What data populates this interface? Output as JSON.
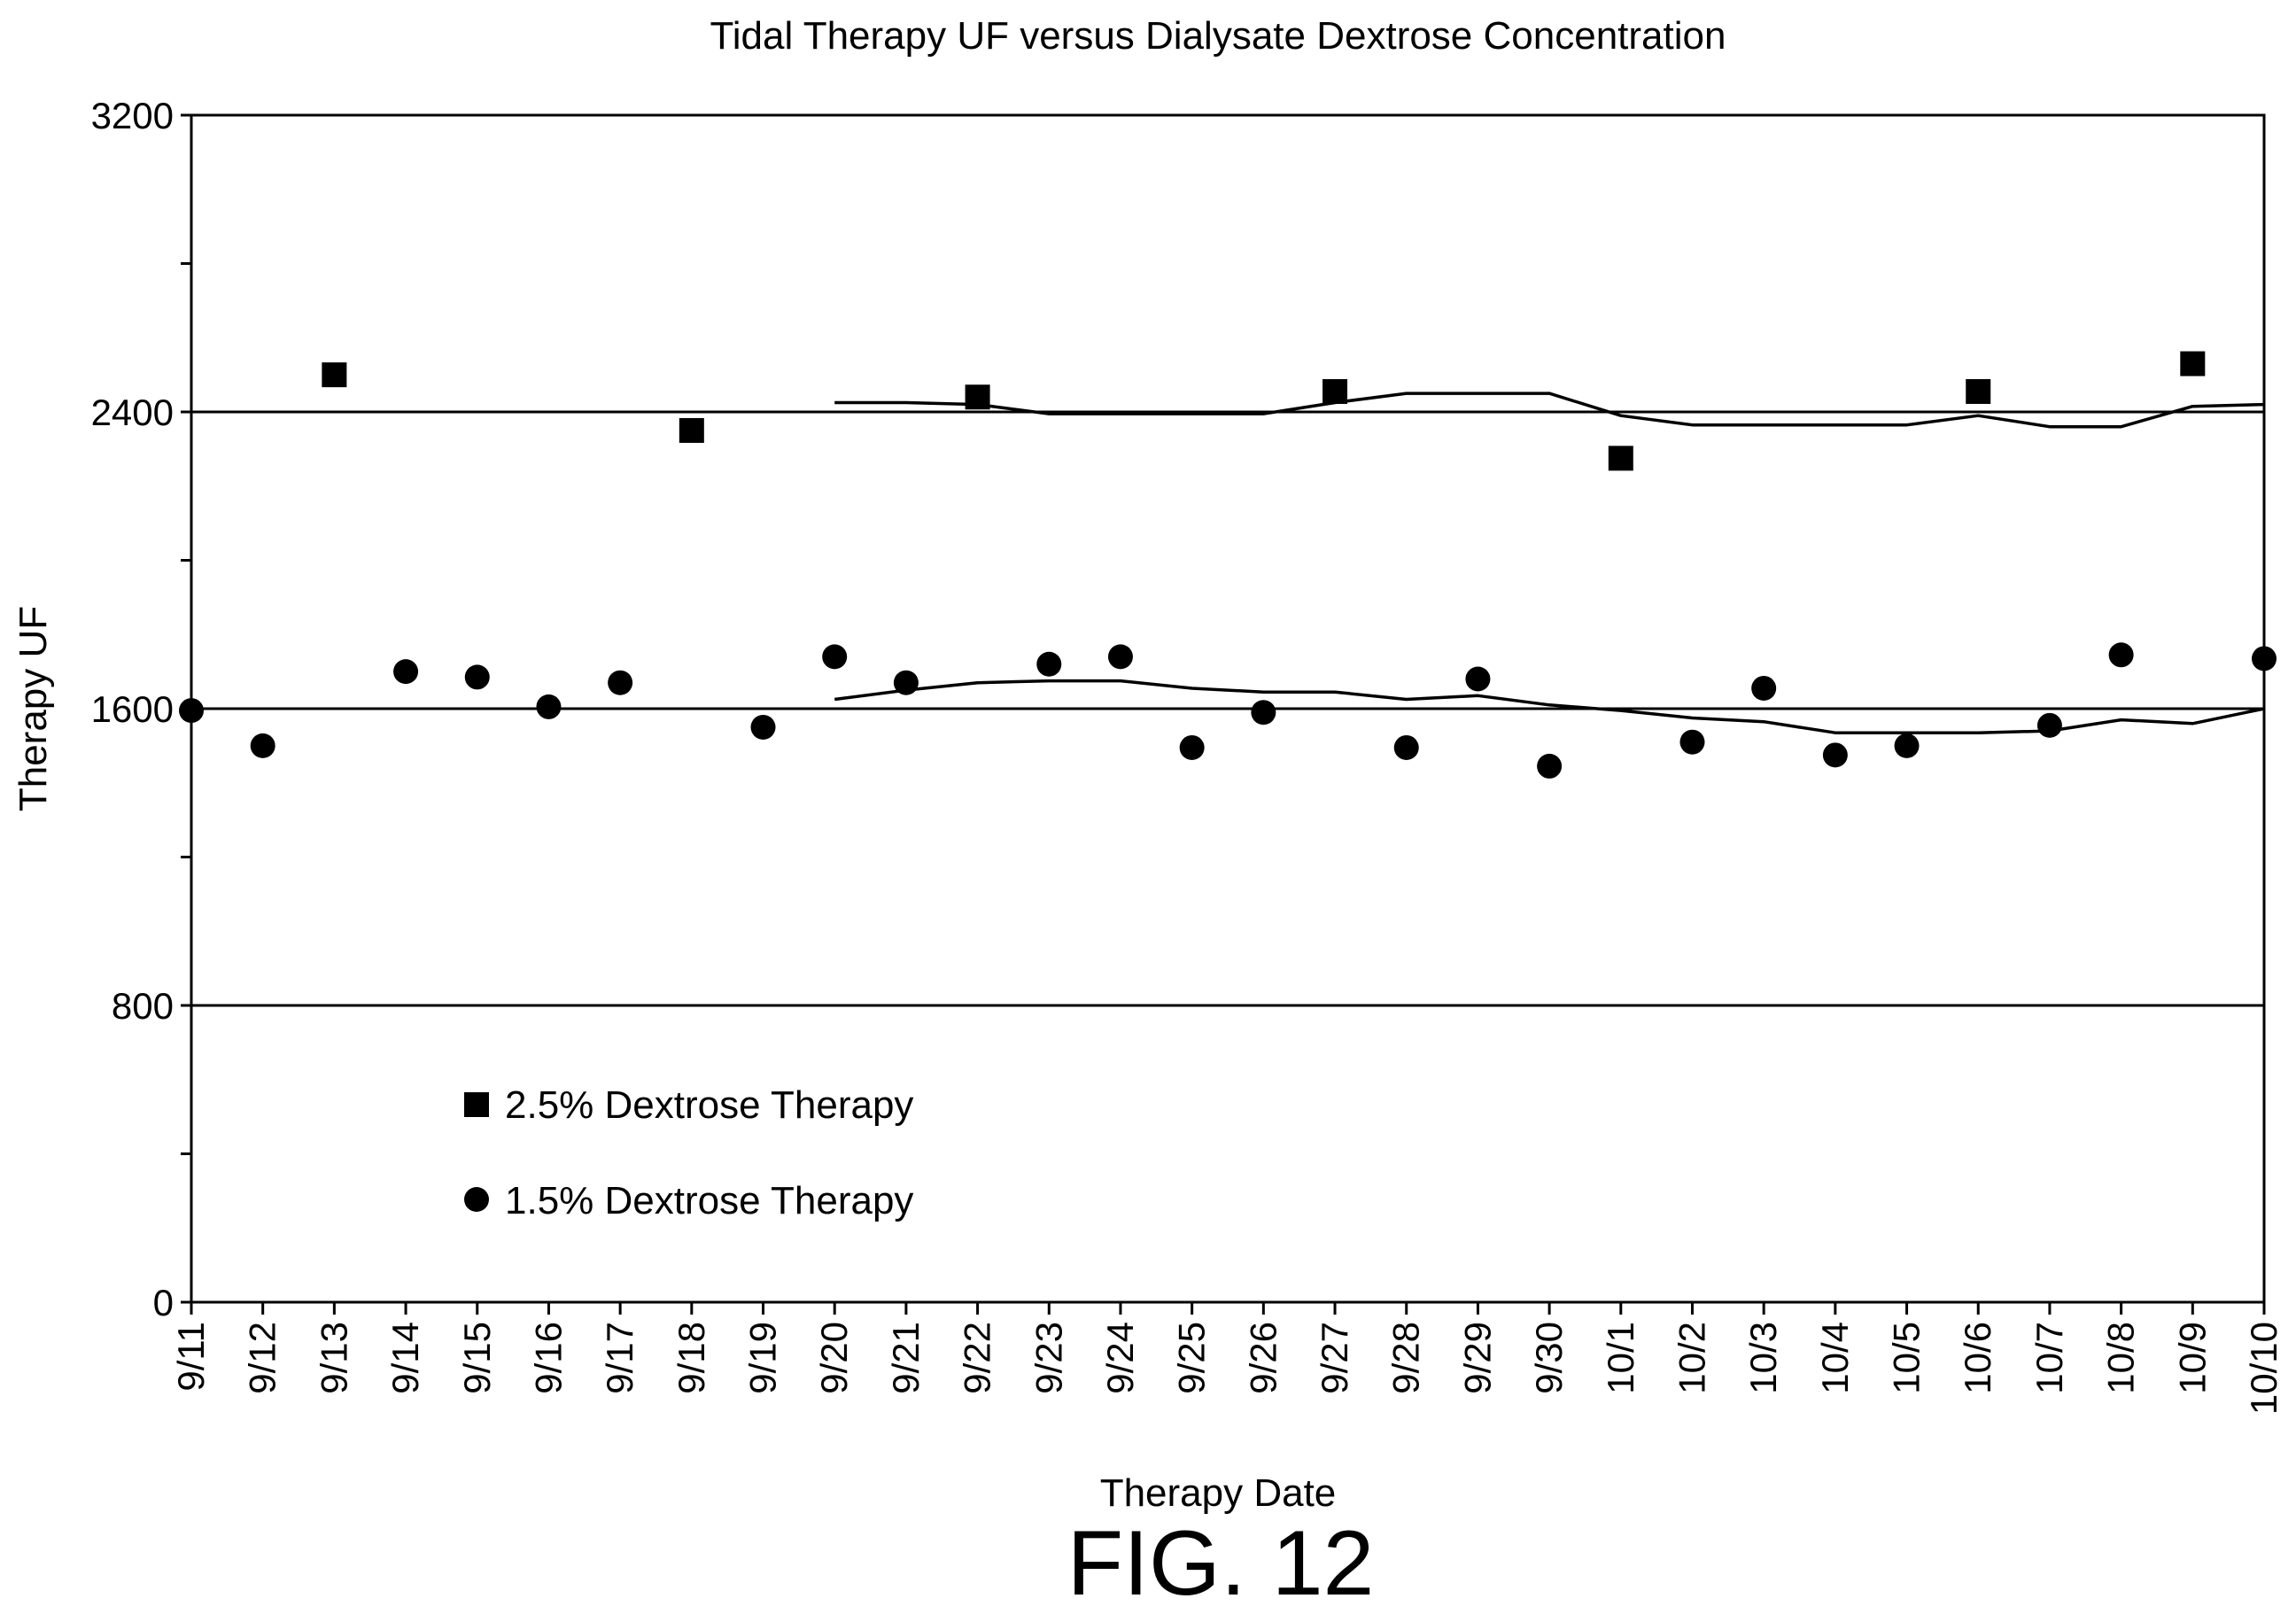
{
  "chart_data": {
    "type": "scatter",
    "title": "Tidal Therapy UF versus Dialysate Dextrose Concentration",
    "xlabel": "Therapy Date",
    "ylabel": "Therapy UF",
    "ylim": [
      0,
      3200
    ],
    "yticks": [
      0,
      800,
      1600,
      2400,
      3200
    ],
    "grid": false,
    "reference_lines": [
      800,
      1600,
      2400
    ],
    "legend_position": "lower-left",
    "categories": [
      "9/11",
      "9/12",
      "9/13",
      "9/14",
      "9/15",
      "9/16",
      "9/17",
      "9/18",
      "9/19",
      "9/20",
      "9/21",
      "9/22",
      "9/23",
      "9/24",
      "9/25",
      "9/26",
      "9/27",
      "9/28",
      "9/29",
      "9/30",
      "10/1",
      "10/2",
      "10/3",
      "10/4",
      "10/5",
      "10/6",
      "10/7",
      "10/8",
      "10/9",
      "10/10"
    ],
    "series": [
      {
        "name": "2.5% Dextrose Therapy",
        "marker": "square",
        "points": [
          {
            "x": "9/13",
            "y": 2500
          },
          {
            "x": "9/18",
            "y": 2350
          },
          {
            "x": "9/22",
            "y": 2440
          },
          {
            "x": "9/27",
            "y": 2455
          },
          {
            "x": "10/1",
            "y": 2275
          },
          {
            "x": "10/6",
            "y": 2455
          },
          {
            "x": "10/9",
            "y": 2530
          }
        ]
      },
      {
        "name": "1.5% Dextrose Therapy",
        "marker": "circle",
        "points": [
          {
            "x": "9/11",
            "y": 1595
          },
          {
            "x": "9/12",
            "y": 1500
          },
          {
            "x": "9/14",
            "y": 1700
          },
          {
            "x": "9/15",
            "y": 1685
          },
          {
            "x": "9/16",
            "y": 1605
          },
          {
            "x": "9/17",
            "y": 1670
          },
          {
            "x": "9/19",
            "y": 1550
          },
          {
            "x": "9/20",
            "y": 1740
          },
          {
            "x": "9/21",
            "y": 1670
          },
          {
            "x": "9/23",
            "y": 1720
          },
          {
            "x": "9/24",
            "y": 1740
          },
          {
            "x": "9/25",
            "y": 1495
          },
          {
            "x": "9/26",
            "y": 1590
          },
          {
            "x": "9/28",
            "y": 1495
          },
          {
            "x": "9/29",
            "y": 1680
          },
          {
            "x": "9/30",
            "y": 1445
          },
          {
            "x": "10/2",
            "y": 1510
          },
          {
            "x": "10/3",
            "y": 1655
          },
          {
            "x": "10/4",
            "y": 1475
          },
          {
            "x": "10/5",
            "y": 1500
          },
          {
            "x": "10/7",
            "y": 1555
          },
          {
            "x": "10/8",
            "y": 1745
          },
          {
            "x": "10/10",
            "y": 1735
          }
        ]
      }
    ],
    "trend_lines": [
      {
        "for": "2.5% Dextrose Therapy",
        "points": [
          {
            "x": "9/20",
            "y": 2425
          },
          {
            "x": "9/21",
            "y": 2425
          },
          {
            "x": "9/22",
            "y": 2420
          },
          {
            "x": "9/23",
            "y": 2395
          },
          {
            "x": "9/24",
            "y": 2395
          },
          {
            "x": "9/25",
            "y": 2395
          },
          {
            "x": "9/26",
            "y": 2395
          },
          {
            "x": "9/27",
            "y": 2425
          },
          {
            "x": "9/28",
            "y": 2450
          },
          {
            "x": "9/29",
            "y": 2450
          },
          {
            "x": "9/30",
            "y": 2450
          },
          {
            "x": "10/1",
            "y": 2390
          },
          {
            "x": "10/2",
            "y": 2365
          },
          {
            "x": "10/3",
            "y": 2365
          },
          {
            "x": "10/4",
            "y": 2365
          },
          {
            "x": "10/5",
            "y": 2365
          },
          {
            "x": "10/6",
            "y": 2390
          },
          {
            "x": "10/7",
            "y": 2360
          },
          {
            "x": "10/8",
            "y": 2360
          },
          {
            "x": "10/9",
            "y": 2415
          },
          {
            "x": "10/10",
            "y": 2420
          }
        ]
      },
      {
        "for": "1.5% Dextrose Therapy",
        "points": [
          {
            "x": "9/20",
            "y": 1625
          },
          {
            "x": "9/21",
            "y": 1650
          },
          {
            "x": "9/22",
            "y": 1670
          },
          {
            "x": "9/23",
            "y": 1675
          },
          {
            "x": "9/24",
            "y": 1675
          },
          {
            "x": "9/25",
            "y": 1655
          },
          {
            "x": "9/26",
            "y": 1645
          },
          {
            "x": "9/27",
            "y": 1645
          },
          {
            "x": "9/28",
            "y": 1625
          },
          {
            "x": "9/29",
            "y": 1635
          },
          {
            "x": "9/30",
            "y": 1610
          },
          {
            "x": "10/1",
            "y": 1595
          },
          {
            "x": "10/2",
            "y": 1575
          },
          {
            "x": "10/3",
            "y": 1565
          },
          {
            "x": "10/4",
            "y": 1535
          },
          {
            "x": "10/5",
            "y": 1535
          },
          {
            "x": "10/6",
            "y": 1535
          },
          {
            "x": "10/7",
            "y": 1540
          },
          {
            "x": "10/8",
            "y": 1570
          },
          {
            "x": "10/9",
            "y": 1560
          },
          {
            "x": "10/10",
            "y": 1600
          }
        ]
      }
    ]
  },
  "figure_label": "FIG. 12"
}
